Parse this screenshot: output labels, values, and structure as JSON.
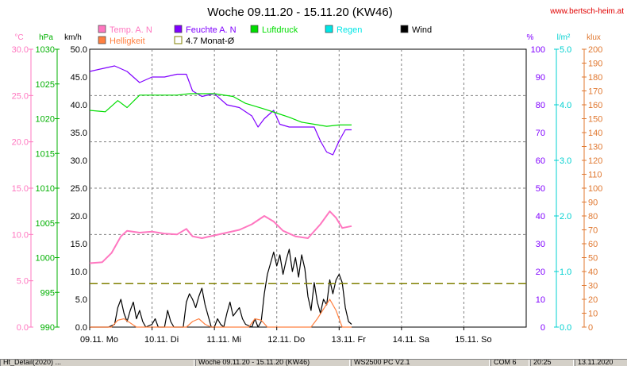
{
  "header": {
    "title": "Woche 09.11.20 - 15.11.20 (KW46)",
    "website": "www.bertsch-heim.at"
  },
  "legend": [
    {
      "label": "Temp. A. N",
      "color": "#ff77c0",
      "style": "fill"
    },
    {
      "label": "Feuchte A. N",
      "color": "#8000ff",
      "style": "fill"
    },
    {
      "label": "Luftdruck",
      "color": "#00dd00",
      "style": "fill"
    },
    {
      "label": "Regen",
      "color": "#00e6e6",
      "style": "fill"
    },
    {
      "label": "Wind",
      "color": "#000000",
      "style": "fill"
    },
    {
      "label": "Helligkeit",
      "color": "#ff8040",
      "style": "fill"
    },
    {
      "label": "4.7 Monat-Ø",
      "color": "#808000",
      "style": "outline"
    }
  ],
  "status_bar": [
    "Ht_Detail(2020) ...",
    "Woche 09.11.20 - 15.11.20 (KW46)",
    "WS2500 PC V2.1",
    "COM 6",
    "20:25",
    "13.11.2020"
  ],
  "chart_data": {
    "type": "line",
    "title": "Woche 09.11.20 - 15.11.20 (KW46)",
    "x_labels": [
      "09.11. Mo",
      "10.11. Di",
      "11.11. Mi",
      "12.11. Do",
      "13.11. Fr",
      "14.11. Sa",
      "15.11. So"
    ],
    "x_range_days": [
      0,
      7
    ],
    "grid": true,
    "axes": {
      "temp": {
        "unit": "°C",
        "color": "#ff77c0",
        "range": [
          0,
          30
        ],
        "ticks": [
          "0.0",
          "5.0",
          "10.0",
          "15.0",
          "20.0",
          "25.0",
          "30.0"
        ]
      },
      "pressure": {
        "unit": "hPa",
        "color": "#00b000",
        "range": [
          990,
          1030
        ],
        "ticks": [
          "990",
          "995",
          "1000",
          "1005",
          "1010",
          "1015",
          "1020",
          "1025",
          "1030"
        ]
      },
      "wind": {
        "unit": "km/h",
        "color": "#000000",
        "range": [
          0,
          50
        ],
        "ticks": [
          "0.0",
          "5.0",
          "10.0",
          "15.0",
          "20.0",
          "25.0",
          "30.0",
          "35.0",
          "40.0",
          "45.0",
          "50.0"
        ]
      },
      "humidity": {
        "unit": "%",
        "color": "#8000ff",
        "range": [
          0,
          100
        ],
        "ticks": [
          "0",
          "10",
          "20",
          "30",
          "40",
          "50",
          "60",
          "70",
          "80",
          "90",
          "100"
        ]
      },
      "rain": {
        "unit": "l/m²",
        "color": "#00d0d0",
        "range": [
          0,
          5
        ],
        "ticks": [
          "0.0",
          "1.0",
          "2.0",
          "3.0",
          "4.0",
          "5.0"
        ]
      },
      "light": {
        "unit": "klux",
        "color": "#e07830",
        "range": [
          0,
          200
        ],
        "ticks": [
          "0",
          "10",
          "20",
          "30",
          "40",
          "50",
          "60",
          "70",
          "80",
          "90",
          "100",
          "110",
          "120",
          "130",
          "140",
          "150",
          "160",
          "170",
          "180",
          "190",
          "200"
        ]
      }
    },
    "series": [
      {
        "name": "Temp. A. N",
        "axis": "temp",
        "color": "#ff77c0",
        "points": [
          [
            0,
            6.9
          ],
          [
            0.2,
            7.0
          ],
          [
            0.35,
            8.0
          ],
          [
            0.5,
            9.8
          ],
          [
            0.6,
            10.4
          ],
          [
            0.8,
            10.2
          ],
          [
            1.0,
            10.3
          ],
          [
            1.2,
            10.1
          ],
          [
            1.4,
            10.0
          ],
          [
            1.55,
            10.6
          ],
          [
            1.65,
            9.8
          ],
          [
            1.8,
            9.6
          ],
          [
            2.0,
            9.9
          ],
          [
            2.2,
            10.2
          ],
          [
            2.4,
            10.5
          ],
          [
            2.6,
            11.1
          ],
          [
            2.8,
            12.0
          ],
          [
            2.95,
            11.4
          ],
          [
            3.1,
            10.4
          ],
          [
            3.3,
            9.8
          ],
          [
            3.5,
            9.6
          ],
          [
            3.7,
            11.1
          ],
          [
            3.85,
            12.5
          ],
          [
            3.95,
            11.8
          ],
          [
            4.05,
            10.7
          ],
          [
            4.2,
            10.9
          ]
        ]
      },
      {
        "name": "Feuchte A. N",
        "axis": "humidity",
        "color": "#8000ff",
        "points": [
          [
            0,
            92
          ],
          [
            0.2,
            93
          ],
          [
            0.4,
            94
          ],
          [
            0.6,
            92
          ],
          [
            0.8,
            88
          ],
          [
            1.0,
            90
          ],
          [
            1.2,
            90
          ],
          [
            1.4,
            91
          ],
          [
            1.55,
            91
          ],
          [
            1.65,
            85
          ],
          [
            1.8,
            83
          ],
          [
            2.0,
            84
          ],
          [
            2.2,
            80
          ],
          [
            2.4,
            79
          ],
          [
            2.6,
            76
          ],
          [
            2.7,
            72
          ],
          [
            2.8,
            75
          ],
          [
            2.95,
            78
          ],
          [
            3.05,
            73
          ],
          [
            3.2,
            72
          ],
          [
            3.35,
            72
          ],
          [
            3.5,
            72
          ],
          [
            3.6,
            72
          ],
          [
            3.7,
            67
          ],
          [
            3.8,
            63
          ],
          [
            3.9,
            62
          ],
          [
            4.0,
            67
          ],
          [
            4.1,
            71
          ],
          [
            4.2,
            71
          ]
        ]
      },
      {
        "name": "Luftdruck",
        "axis": "pressure",
        "color": "#00dd00",
        "points": [
          [
            0,
            1021.2
          ],
          [
            0.25,
            1021.0
          ],
          [
            0.45,
            1022.6
          ],
          [
            0.6,
            1021.6
          ],
          [
            0.8,
            1023.4
          ],
          [
            1.0,
            1023.4
          ],
          [
            1.2,
            1023.4
          ],
          [
            1.4,
            1023.4
          ],
          [
            1.6,
            1023.6
          ],
          [
            2.0,
            1023.6
          ],
          [
            2.3,
            1023.2
          ],
          [
            2.5,
            1022.2
          ],
          [
            2.8,
            1021.4
          ],
          [
            3.0,
            1020.8
          ],
          [
            3.2,
            1020.2
          ],
          [
            3.4,
            1019.5
          ],
          [
            3.6,
            1019.2
          ],
          [
            3.8,
            1018.9
          ],
          [
            4.0,
            1019.1
          ],
          [
            4.2,
            1019.1
          ]
        ]
      },
      {
        "name": "Regen",
        "axis": "rain",
        "color": "#00e6e6",
        "points": []
      },
      {
        "name": "Wind",
        "axis": "wind",
        "color": "#000000",
        "points": [
          [
            0,
            0
          ],
          [
            0.3,
            0
          ],
          [
            0.4,
            0.5
          ],
          [
            0.45,
            3.5
          ],
          [
            0.5,
            5.0
          ],
          [
            0.55,
            2.5
          ],
          [
            0.6,
            1.0
          ],
          [
            0.65,
            3.0
          ],
          [
            0.7,
            4.5
          ],
          [
            0.75,
            1.5
          ],
          [
            0.8,
            3.0
          ],
          [
            0.85,
            1.0
          ],
          [
            0.9,
            0
          ],
          [
            1.0,
            0.5
          ],
          [
            1.05,
            1.5
          ],
          [
            1.1,
            0
          ],
          [
            1.2,
            0
          ],
          [
            1.25,
            3.0
          ],
          [
            1.3,
            1.0
          ],
          [
            1.35,
            0
          ],
          [
            1.5,
            0
          ],
          [
            1.55,
            4.5
          ],
          [
            1.6,
            6.0
          ],
          [
            1.65,
            5.0
          ],
          [
            1.7,
            3.5
          ],
          [
            1.75,
            5.5
          ],
          [
            1.8,
            7.0
          ],
          [
            1.85,
            4.0
          ],
          [
            1.9,
            2.0
          ],
          [
            1.95,
            0
          ],
          [
            2.0,
            0
          ],
          [
            2.05,
            1.5
          ],
          [
            2.1,
            0.5
          ],
          [
            2.15,
            0
          ],
          [
            2.2,
            2.5
          ],
          [
            2.25,
            4.5
          ],
          [
            2.3,
            2.0
          ],
          [
            2.4,
            3.5
          ],
          [
            2.45,
            1.5
          ],
          [
            2.5,
            0.5
          ],
          [
            2.6,
            0
          ],
          [
            2.65,
            1.5
          ],
          [
            2.7,
            0
          ],
          [
            2.75,
            1.0
          ],
          [
            2.8,
            6.0
          ],
          [
            2.85,
            9.5
          ],
          [
            2.9,
            11.5
          ],
          [
            2.95,
            13.5
          ],
          [
            3.0,
            11.0
          ],
          [
            3.05,
            13.0
          ],
          [
            3.1,
            9.5
          ],
          [
            3.15,
            12.0
          ],
          [
            3.2,
            14.0
          ],
          [
            3.25,
            10.0
          ],
          [
            3.3,
            12.5
          ],
          [
            3.35,
            9.0
          ],
          [
            3.4,
            13.0
          ],
          [
            3.45,
            10.5
          ],
          [
            3.5,
            5.5
          ],
          [
            3.55,
            3.0
          ],
          [
            3.6,
            8.0
          ],
          [
            3.65,
            4.5
          ],
          [
            3.7,
            2.5
          ],
          [
            3.75,
            5.0
          ],
          [
            3.8,
            4.0
          ],
          [
            3.85,
            8.5
          ],
          [
            3.9,
            6.0
          ],
          [
            3.95,
            8.5
          ],
          [
            4.0,
            9.5
          ],
          [
            4.05,
            8.0
          ],
          [
            4.1,
            3.5
          ],
          [
            4.15,
            1.0
          ],
          [
            4.2,
            0.5
          ]
        ]
      },
      {
        "name": "Helligkeit",
        "axis": "light",
        "color": "#ff8040",
        "points": [
          [
            0,
            0
          ],
          [
            0.35,
            0
          ],
          [
            0.45,
            5
          ],
          [
            0.55,
            6
          ],
          [
            0.65,
            3
          ],
          [
            0.75,
            0
          ],
          [
            1.55,
            0
          ],
          [
            1.65,
            4
          ],
          [
            1.75,
            6
          ],
          [
            1.85,
            2
          ],
          [
            1.95,
            0
          ],
          [
            2.55,
            0
          ],
          [
            2.65,
            6
          ],
          [
            2.75,
            5
          ],
          [
            2.85,
            0
          ],
          [
            3.55,
            0
          ],
          [
            3.65,
            6
          ],
          [
            3.75,
            13
          ],
          [
            3.85,
            20
          ],
          [
            3.95,
            12
          ],
          [
            4.05,
            0
          ],
          [
            4.2,
            0
          ]
        ]
      },
      {
        "name": "4.7 Monat-Ø",
        "axis": "temp",
        "color": "#808000",
        "dashed": true,
        "points": [
          [
            0,
            4.7
          ],
          [
            7,
            4.7
          ]
        ]
      }
    ]
  }
}
